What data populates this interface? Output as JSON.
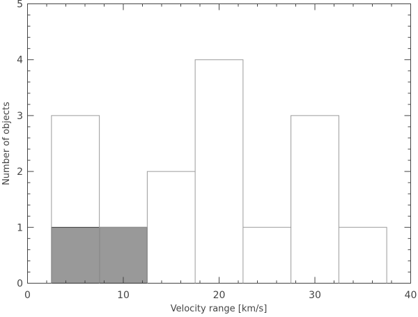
{
  "chart_data": {
    "type": "bar",
    "xlabel": "Velocity range [km/s]",
    "ylabel": "Number of objects",
    "xlim": [
      0,
      40
    ],
    "ylim": [
      0,
      5
    ],
    "xticks": [
      0,
      10,
      20,
      30,
      40
    ],
    "yticks": [
      0,
      1,
      2,
      3,
      4,
      5
    ],
    "grid": false,
    "bin_edges": [
      2.5,
      7.5,
      12.5,
      17.5,
      22.5,
      27.5,
      32.5,
      37.5
    ],
    "series": [
      {
        "style": "outline",
        "color": "#9a9a9a",
        "values": [
          3,
          1,
          2,
          4,
          1,
          3,
          1
        ]
      },
      {
        "style": "filled",
        "color": "#999999",
        "values": [
          1,
          1,
          0,
          0,
          0,
          0,
          0
        ]
      }
    ]
  }
}
